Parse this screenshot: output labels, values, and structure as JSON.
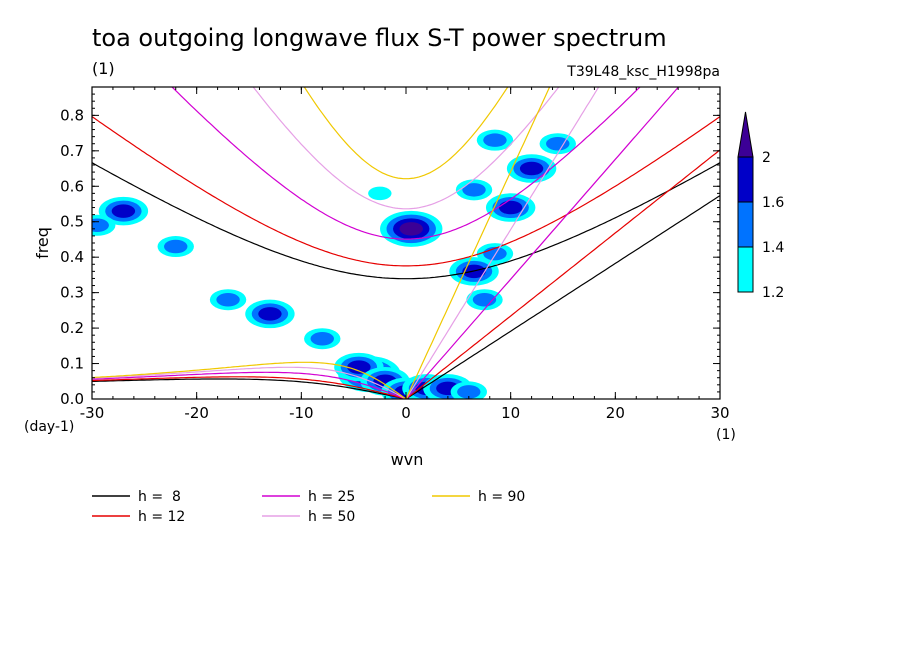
{
  "chart_data": {
    "type": "contour",
    "title": "toa outgoing longwave flux S-T power spectrum",
    "subtitle_left": "(1)",
    "subtitle_right": "T39L48_ksc_H1998pa",
    "xlabel": "wvn",
    "ylabel": "freq",
    "x_unit": "(1)",
    "y_unit": "(day-1)",
    "xlim": [
      -30,
      30
    ],
    "ylim": [
      0,
      0.88
    ],
    "x_ticks": [
      -30,
      -20,
      -10,
      0,
      10,
      20,
      30
    ],
    "x_tick_labels": [
      "-30",
      "-20",
      "-10",
      "0",
      "10",
      "20",
      "30"
    ],
    "y_ticks": [
      0.0,
      0.1,
      0.2,
      0.3,
      0.4,
      0.5,
      0.6,
      0.7,
      0.8
    ],
    "y_tick_labels": [
      "0.0",
      "0.1",
      "0.2",
      "0.3",
      "0.4",
      "0.5",
      "0.6",
      "0.7",
      "0.8"
    ],
    "colorbar": {
      "levels": [
        1.2,
        1.4,
        1.6,
        2
      ],
      "labels": [
        "1.2",
        "1.4",
        "1.6",
        "2"
      ],
      "colors": [
        "#00ffff",
        "#0073ff",
        "#0000c8",
        "#3c0096"
      ]
    },
    "dispersion_curves": [
      {
        "name": "h =  8",
        "h": 8,
        "color": "#000000"
      },
      {
        "name": "h = 12",
        "h": 12,
        "color": "#e60000"
      },
      {
        "name": "h = 25",
        "h": 25,
        "color": "#d200d2"
      },
      {
        "name": "h = 50",
        "h": 50,
        "color": "#e6a0e6"
      },
      {
        "name": "h = 90",
        "h": 90,
        "color": "#f0c800"
      }
    ],
    "spectral_peaks": [
      {
        "k": -3.5,
        "f": 0.07,
        "level": 4
      },
      {
        "k": -4.5,
        "f": 0.09,
        "level": 3
      },
      {
        "k": -2.0,
        "f": 0.05,
        "level": 3
      },
      {
        "k": 0.0,
        "f": 0.02,
        "level": 3
      },
      {
        "k": 2.0,
        "f": 0.03,
        "level": 3
      },
      {
        "k": 4.0,
        "f": 0.03,
        "level": 3
      },
      {
        "k": 6.0,
        "f": 0.02,
        "level": 2
      },
      {
        "k": -8.0,
        "f": 0.17,
        "level": 2
      },
      {
        "k": -13.0,
        "f": 0.24,
        "level": 3
      },
      {
        "k": -17.0,
        "f": 0.28,
        "level": 2
      },
      {
        "k": -22.0,
        "f": 0.43,
        "level": 2
      },
      {
        "k": -27.0,
        "f": 0.53,
        "level": 3
      },
      {
        "k": -29.5,
        "f": 0.49,
        "level": 2
      },
      {
        "k": 0.5,
        "f": 0.48,
        "level": 4
      },
      {
        "k": -2.5,
        "f": 0.58,
        "level": 1
      },
      {
        "k": 6.5,
        "f": 0.36,
        "level": 3
      },
      {
        "k": 7.5,
        "f": 0.28,
        "level": 2
      },
      {
        "k": 8.5,
        "f": 0.41,
        "level": 2
      },
      {
        "k": 10.0,
        "f": 0.54,
        "level": 3
      },
      {
        "k": 12.0,
        "f": 0.65,
        "level": 3
      },
      {
        "k": 14.5,
        "f": 0.72,
        "level": 2
      },
      {
        "k": 6.5,
        "f": 0.59,
        "level": 2
      },
      {
        "k": 8.5,
        "f": 0.73,
        "level": 2
      }
    ]
  }
}
